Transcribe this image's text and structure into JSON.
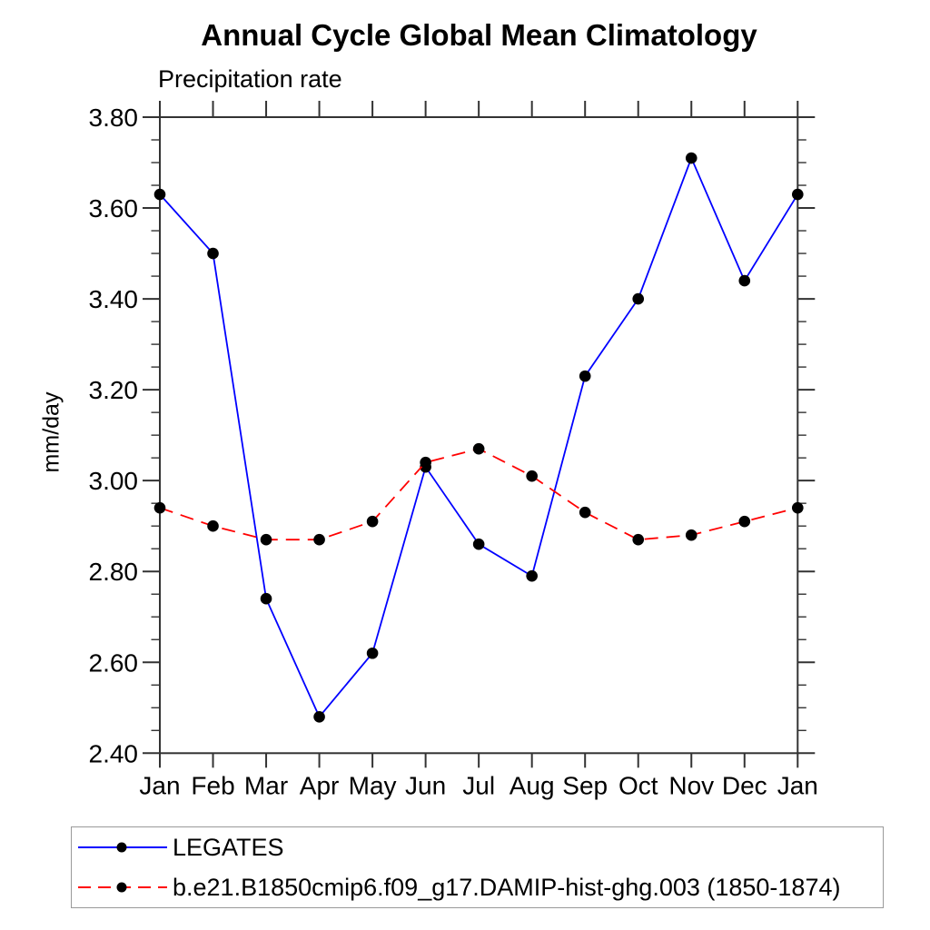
{
  "chart_data": {
    "type": "line",
    "title": "Annual Cycle Global Mean Climatology",
    "subtitle": "Precipitation rate",
    "ylabel": "mm/day",
    "xlabel": "",
    "x_categories": [
      "Jan",
      "Feb",
      "Mar",
      "Apr",
      "May",
      "Jun",
      "Jul",
      "Aug",
      "Sep",
      "Oct",
      "Nov",
      "Dec",
      "Jan"
    ],
    "ylim": [
      2.4,
      3.8
    ],
    "ytick_major_interval": 0.2,
    "ytick_minor_interval": 0.05,
    "ytick_labels": [
      "3.80",
      "3.60",
      "3.40",
      "3.20",
      "3.00",
      "2.80",
      "2.60",
      "2.40"
    ],
    "grid": false,
    "legend_position": "bottom",
    "axis_color": "#333333",
    "marker_color": "#000000",
    "series": [
      {
        "name": "LEGATES",
        "color": "#0000ff",
        "style": "solid",
        "marker": "filled-circle",
        "values": [
          3.63,
          3.5,
          2.74,
          2.48,
          2.62,
          3.03,
          2.86,
          2.79,
          3.23,
          3.4,
          3.71,
          3.44,
          3.63
        ]
      },
      {
        "name": "b.e21.B1850cmip6.f09_g17.DAMIP-hist-ghg.003 (1850-1874)",
        "color": "#ff0000",
        "style": "dashed",
        "marker": "filled-circle",
        "values": [
          2.94,
          2.9,
          2.87,
          2.87,
          2.91,
          3.04,
          3.07,
          3.01,
          2.93,
          2.87,
          2.88,
          2.91,
          2.94
        ]
      }
    ]
  }
}
